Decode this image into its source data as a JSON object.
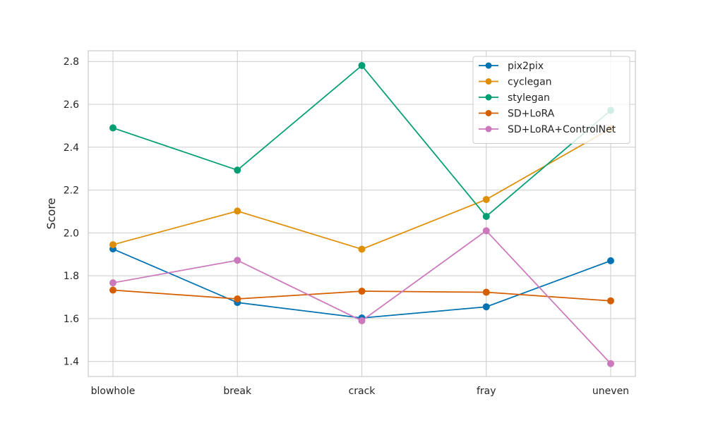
{
  "chart_data": {
    "type": "line",
    "title": "",
    "xlabel": "",
    "ylabel": "Score",
    "categories": [
      "blowhole",
      "break",
      "crack",
      "fray",
      "uneven"
    ],
    "ylim": [
      1.33,
      2.85
    ],
    "yticks": [
      1.4,
      1.6,
      1.8,
      2.0,
      2.2,
      2.4,
      2.6,
      2.8
    ],
    "ytick_labels": [
      "1.4",
      "1.6",
      "1.8",
      "2.0",
      "2.2",
      "2.4",
      "2.6",
      "2.8"
    ],
    "grid": true,
    "legend_position": "top-right",
    "series": [
      {
        "name": "pix2pix",
        "color": "#0173b2",
        "values": [
          1.925,
          1.675,
          1.603,
          1.655,
          1.87
        ]
      },
      {
        "name": "cyclegan",
        "color": "#de8f05",
        "values": [
          1.945,
          2.102,
          1.924,
          2.156,
          2.487
        ]
      },
      {
        "name": "stylegan",
        "color": "#029e73",
        "values": [
          2.49,
          2.293,
          2.781,
          2.077,
          2.572
        ]
      },
      {
        "name": "SD+LoRA",
        "color": "#d55e00",
        "values": [
          1.733,
          1.692,
          1.728,
          1.723,
          1.683
        ]
      },
      {
        "name": "SD+LoRA+ControlNet",
        "color": "#cc78bc",
        "values": [
          1.767,
          1.872,
          1.59,
          2.01,
          1.39
        ]
      }
    ]
  }
}
